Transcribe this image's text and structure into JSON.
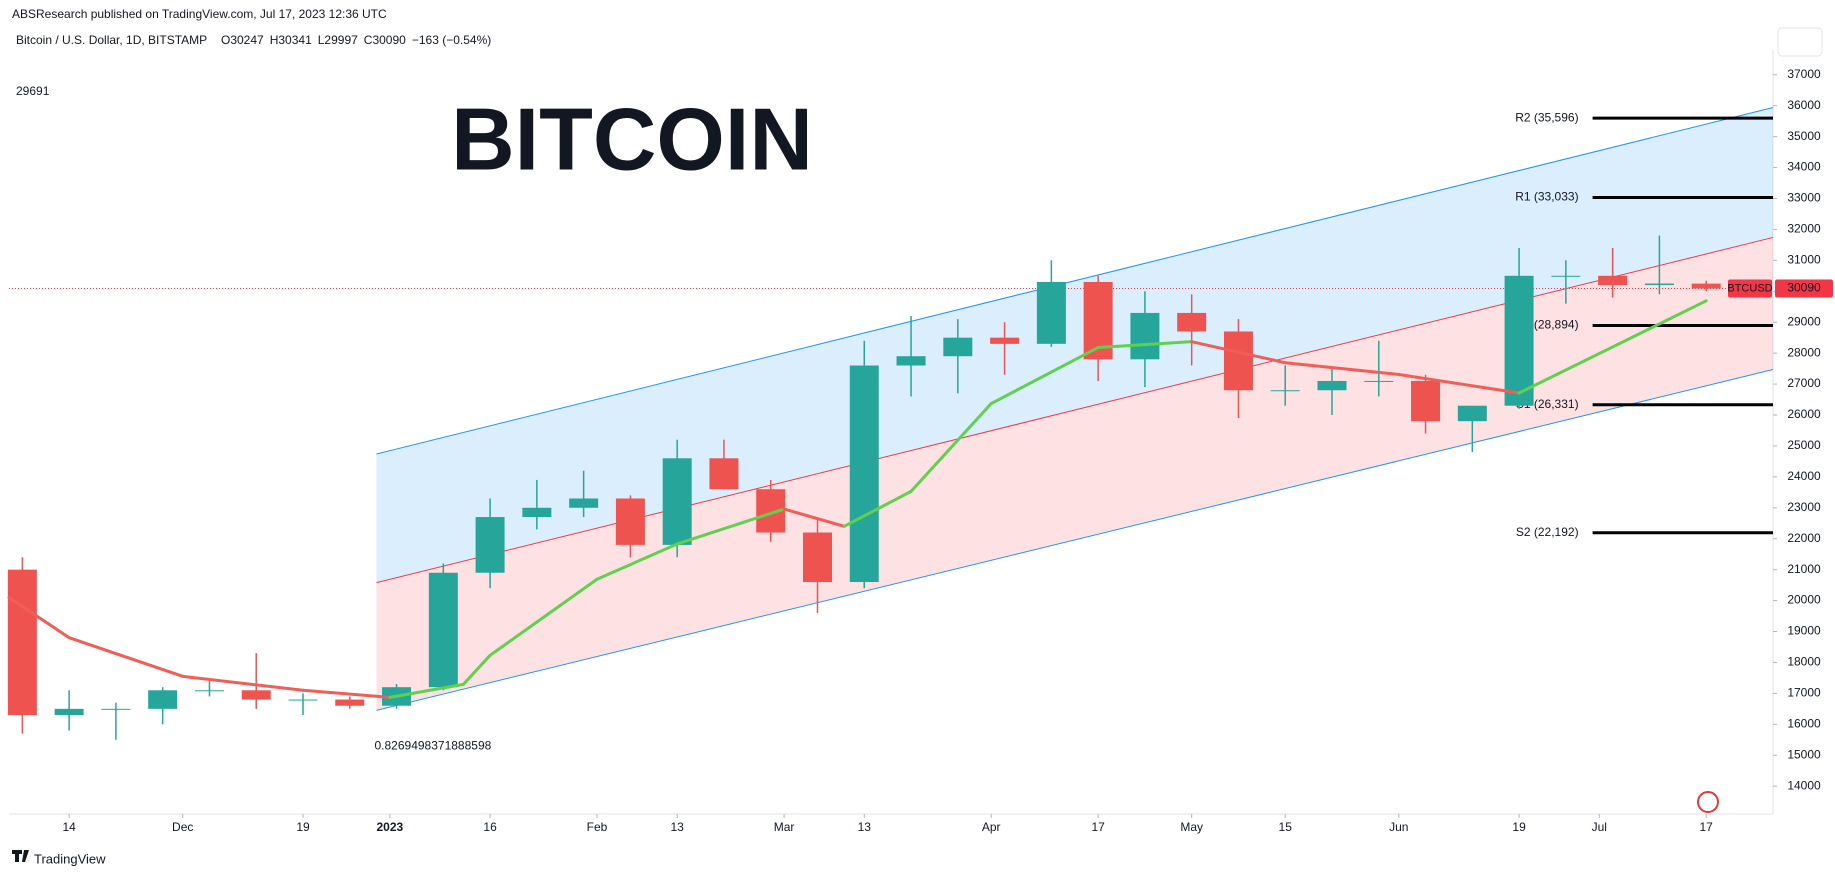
{
  "chart_data": {
    "type": "candlestick",
    "title": "BITCOIN",
    "publisher": "ABSResearch published on TradingView.com, Jul 17, 2023 12:36 UTC",
    "symbol": "Bitcoin / U.S. Dollar, 1D, BITSTAMP",
    "ohlc_labels": [
      "O30247",
      "H30341",
      "L29997",
      "C30090",
      "−163 (−0.54%)"
    ],
    "footer": "TradingView",
    "up_color": "#26a69a",
    "down_color": "#ef5350",
    "x": [
      -7,
      0,
      7,
      14,
      21,
      28,
      35,
      42,
      49,
      56,
      63,
      70,
      77,
      84,
      91,
      98,
      105,
      112,
      119,
      126,
      133,
      140,
      147,
      154,
      161,
      168,
      175,
      182,
      189,
      196,
      203,
      210,
      217,
      224,
      231,
      238,
      245
    ],
    "open": [
      21000,
      16300,
      16500,
      16500,
      17100,
      17100,
      16800,
      16800,
      16600,
      17200,
      20900,
      22700,
      23000,
      23300,
      21800,
      24600,
      23600,
      22200,
      20600,
      27600,
      27900,
      28500,
      28300,
      30300,
      27800,
      29300,
      28700,
      26800,
      26800,
      27100,
      27100,
      25800,
      26300,
      30500,
      30500,
      30200,
      30247
    ],
    "high": [
      21400,
      17100,
      16700,
      17200,
      17400,
      18300,
      17000,
      16900,
      17300,
      21200,
      23300,
      23900,
      24200,
      23400,
      25200,
      25200,
      23900,
      22600,
      28400,
      29200,
      29100,
      29000,
      31000,
      30500,
      30000,
      29900,
      29100,
      27600,
      27500,
      28400,
      27300,
      26200,
      31400,
      31000,
      31400,
      31800,
      30341
    ],
    "low": [
      15700,
      15800,
      15500,
      16000,
      16900,
      16500,
      16300,
      16500,
      16500,
      17100,
      20400,
      22300,
      22700,
      21400,
      21400,
      23600,
      21900,
      19600,
      20400,
      26600,
      26700,
      27300,
      28200,
      27100,
      26900,
      27600,
      25900,
      26300,
      26000,
      26600,
      25400,
      24800,
      26200,
      29600,
      29800,
      29900,
      29997
    ],
    "close": [
      16300,
      16500,
      16500,
      17100,
      17100,
      16800,
      16800,
      16600,
      17200,
      20900,
      22700,
      23000,
      23300,
      21800,
      24600,
      23600,
      22200,
      20600,
      27600,
      27900,
      28500,
      28300,
      30300,
      27800,
      29300,
      28700,
      26800,
      26800,
      27100,
      27100,
      25800,
      26300,
      30500,
      30500,
      30200,
      30250,
      30090
    ],
    "ma": {
      "up_color": "#5fd14f",
      "down_color": "#ef5f57",
      "x": [
        -9,
        0,
        17,
        35,
        48,
        59,
        63,
        79,
        91,
        107,
        116,
        126,
        138,
        154,
        168,
        182,
        199,
        217,
        245
      ],
      "values": [
        20100,
        18800,
        17550,
        17100,
        16870,
        17290,
        18230,
        20690,
        21830,
        22960,
        22400,
        23530,
        26370,
        28180,
        28370,
        27690,
        27310,
        26710,
        29691
      ]
    },
    "channel": {
      "x": [
        46,
        255
      ],
      "upper": [
        24740,
        35940
      ],
      "middle": [
        20580,
        31740
      ],
      "lower": [
        16450,
        27470
      ],
      "line_color": "#2196f3",
      "middle_color": "#f23645",
      "upper_fill": "rgba(33,150,243,0.16)",
      "lower_fill": "rgba(242,54,69,0.15)",
      "correlation": 0.8269498371888598
    },
    "levels": [
      {
        "label": "R2 (35,596)",
        "value": 35596
      },
      {
        "label": "R1 (33,033)",
        "value": 33033
      },
      {
        "label": "(28,894)",
        "value": 28894
      },
      {
        "label": "S1 (26,331)",
        "value": 26331
      },
      {
        "label": "S2 (22,192)",
        "value": 22192
      }
    ],
    "level_x": [
      228,
      255
    ],
    "last_price": {
      "symbol": "BTCUSD",
      "value": 30090,
      "color": "#f23645"
    },
    "xlim": [
      -9,
      255
    ],
    "ylim": [
      13100,
      37800
    ],
    "xticks": [
      {
        "value": 0,
        "label": "14"
      },
      {
        "value": 17,
        "label": "Dec"
      },
      {
        "value": 35,
        "label": "19"
      },
      {
        "value": 48,
        "label": "2023"
      },
      {
        "value": 63,
        "label": "16"
      },
      {
        "value": 79,
        "label": "Feb"
      },
      {
        "value": 91,
        "label": "13"
      },
      {
        "value": 107,
        "label": "Mar"
      },
      {
        "value": 119,
        "label": "13"
      },
      {
        "value": 138,
        "label": "Apr"
      },
      {
        "value": 154,
        "label": "17"
      },
      {
        "value": 168,
        "label": "May"
      },
      {
        "value": 182,
        "label": "15"
      },
      {
        "value": 199,
        "label": "Jun"
      },
      {
        "value": 217,
        "label": "19"
      },
      {
        "value": 229,
        "label": "Jul"
      },
      {
        "value": 245,
        "label": "17"
      }
    ],
    "yticks": [
      14000,
      15000,
      16000,
      17000,
      18000,
      19000,
      20000,
      21000,
      22000,
      23000,
      24000,
      25000,
      26000,
      27000,
      28000,
      29000,
      30000,
      31000,
      32000,
      33000,
      34000,
      35000,
      36000,
      37000
    ]
  }
}
